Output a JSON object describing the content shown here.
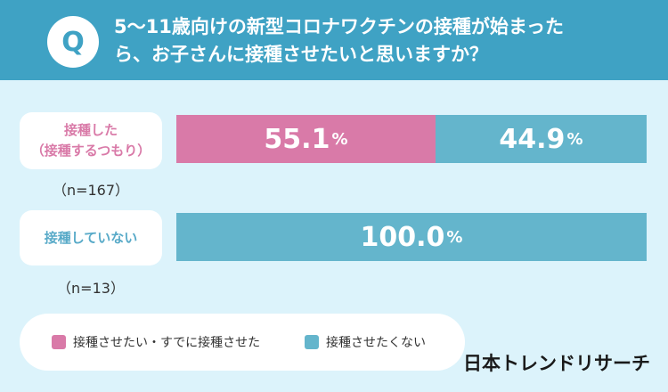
{
  "header": {
    "badge": "Q",
    "question_line1": "5〜11歳向けの新型コロナワクチンの接種が始まった",
    "question_line2": "ら、お子さんに接種させたいと思いますか？"
  },
  "rows": [
    {
      "label_line1": "接種した",
      "label_line2": "（接種するつもり）",
      "n": "（n=167）"
    },
    {
      "label_line1": "接種していない",
      "label_line2": "",
      "n": "（n=13）"
    }
  ],
  "legend": [
    {
      "label": "接種させたい・すでに接種させた",
      "color": "#d97aa8"
    },
    {
      "label": "接種させたくない",
      "color": "#64b5cc"
    }
  ],
  "brand": "日本トレンドリサーチ",
  "chart_data": {
    "type": "bar",
    "orientation": "horizontal",
    "stacked": true,
    "categories": [
      "接種した（接種するつもり）",
      "接種していない"
    ],
    "series": [
      {
        "name": "接種させたい・すでに接種させた",
        "values": [
          55.1,
          0.0
        ],
        "color": "#d97aa8"
      },
      {
        "name": "接種させたくない",
        "values": [
          44.9,
          100.0
        ],
        "color": "#64b5cc"
      }
    ],
    "value_suffix": "%",
    "xlim": [
      0,
      100
    ],
    "legend_position": "bottom-left"
  }
}
